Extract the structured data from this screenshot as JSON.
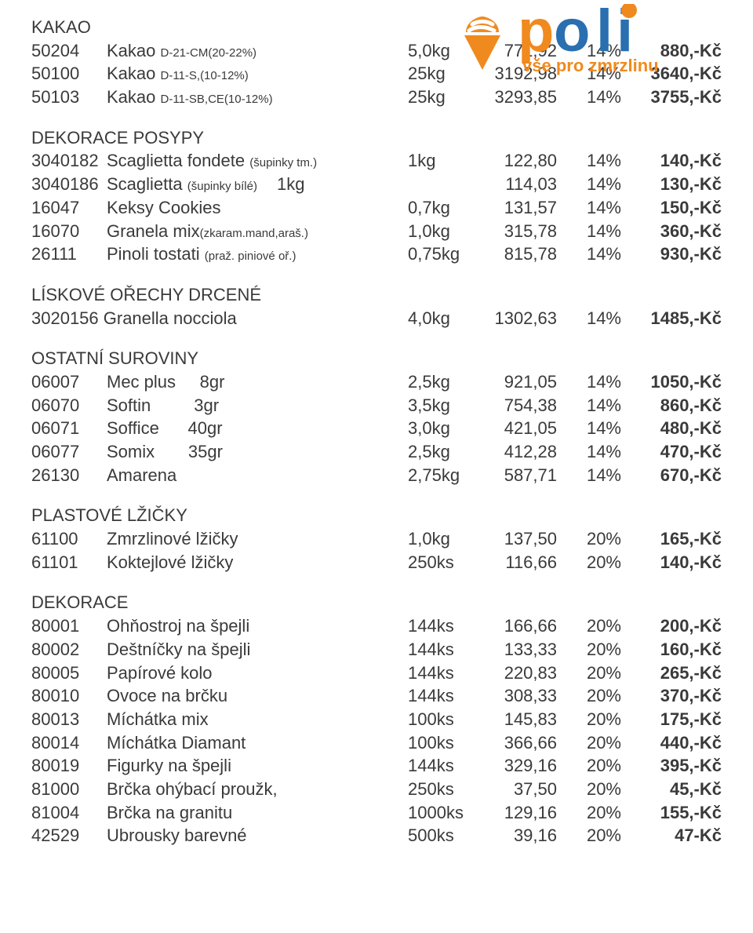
{
  "logo": {
    "cone_color": "#f08a1f",
    "scoop_color": "#f08a1f",
    "p_color": "#f08a1f",
    "oli_color": "#2a6fb0",
    "tagline": "vše pro zmrzlinu",
    "tagline_color": "#f08a1f"
  },
  "sections": [
    {
      "heading": "KAKAO",
      "rows": [
        {
          "code": "50204",
          "name": "Kakao ",
          "sub": "D-21-CM(20-22%)",
          "wt": "5,0kg",
          "price": "771,92",
          "tax": "14%",
          "total": "880,-Kč"
        },
        {
          "code": "50100",
          "name": "Kakao ",
          "sub": "D-11-S,(10-12%)",
          "wt": "25kg",
          "price": "3192,98",
          "tax": "14%",
          "total": "3640,-Kč"
        },
        {
          "code": "50103",
          "name": "Kakao ",
          "sub": "D-11-SB,CE(10-12%) ",
          "wt": "25kg",
          "price": "3293,85",
          "tax": "14%",
          "total": "3755,-Kč"
        }
      ]
    },
    {
      "heading": "DEKORACE POSYPY",
      "rows": [
        {
          "code": "3040182",
          "name": "Scaglietta fondete ",
          "sub": "(šupinky tm.)",
          "wt": "1kg",
          "price": "122,80",
          "tax": "14%",
          "total": "140,-Kč"
        },
        {
          "code": "3040186",
          "name": "Scaglietta ",
          "sub": "(šupinky bílé)      ",
          "post": "1kg",
          "wt": "",
          "price": "114,03",
          "tax": "14%",
          "total": "130,-Kč"
        },
        {
          "code": "16047",
          "name": "Keksy Cookies",
          "wt": "0,7kg",
          "price": "131,57",
          "tax": "14%",
          "total": "150,-Kč"
        },
        {
          "code": "16070",
          "name": "Granela mix",
          "sub": "(zkaram.mand,araš.)",
          "wt": "1,0kg",
          "price": "315,78",
          "tax": "14%",
          "total": "360,-Kč"
        },
        {
          "code": "26111",
          "name": "Pinoli tostati ",
          "sub": "(praž. piniové oř.)",
          "wt": "0,75kg",
          "price": "815,78",
          "tax": "14%",
          "total": "930,-Kč"
        }
      ]
    },
    {
      "heading": "LÍSKOVÉ OŘECHY DRCENÉ",
      "rows": [
        {
          "code": "3020156 Granella nocciola",
          "name": "",
          "wt": "4,0kg",
          "price": "1302,63",
          "tax": "14%",
          "total": "1485,-Kč",
          "merged": true
        }
      ]
    },
    {
      "heading": "OSTATNÍ SUROVINY",
      "rows": [
        {
          "code": "06007",
          "name": "Mec plus     8gr",
          "wt": "2,5kg",
          "price": "921,05",
          "tax": "14%",
          "total": "1050,-Kč"
        },
        {
          "code": "06070",
          "name": "Softin         3gr",
          "wt": "3,5kg",
          "price": "754,38",
          "tax": "14%",
          "total": "860,-Kč"
        },
        {
          "code": "06071",
          "name": "Soffice      40gr",
          "wt": "3,0kg",
          "price": "421,05",
          "tax": "14%",
          "total": "480,-Kč"
        },
        {
          "code": "06077",
          "name": "Somix       35gr",
          "wt": "2,5kg",
          "price": "412,28",
          "tax": "14%",
          "total": "470,-Kč"
        },
        {
          "code": "26130",
          "name": "Amarena",
          "wt": "2,75kg",
          "price": "587,71",
          "tax": "14%",
          "total": "670,-Kč"
        }
      ]
    },
    {
      "heading": "PLASTOVÉ LŽIČKY",
      "rows": [
        {
          "code": "61100",
          "name": "Zmrzlinové lžičky",
          "wt": "1,0kg",
          "price": "137,50",
          "tax": "20%",
          "total": "165,-Kč"
        },
        {
          "code": "61101",
          "name": "Koktejlové lžičky",
          "wt": "250ks",
          "price": "116,66",
          "tax": "20%",
          "total": "140,-Kč"
        }
      ]
    },
    {
      "heading": "DEKORACE",
      "rows": [
        {
          "code": "80001",
          "name": "Ohňostroj na špejli",
          "wt": "144ks",
          "price": "166,66",
          "tax": "20%",
          "total": "200,-Kč"
        },
        {
          "code": "80002",
          "name": "Deštníčky na špejli",
          "wt": "144ks",
          "price": "133,33",
          "tax": "20%",
          "total": "160,-Kč"
        },
        {
          "code": "80005",
          "name": "Papírové kolo",
          "wt": "144ks",
          "price": "220,83",
          "tax": "20%",
          "total": "265,-Kč"
        },
        {
          "code": "80010",
          "name": "Ovoce na brčku",
          "wt": "144ks",
          "price": "308,33",
          "tax": "20%",
          "total": "370,-Kč"
        },
        {
          "code": "80013",
          "name": "Míchátka mix",
          "wt": "100ks",
          "price": "145,83",
          "tax": "20%",
          "total": "175,-Kč"
        },
        {
          "code": "80014",
          "name": "Míchátka Diamant",
          "wt": "100ks",
          "price": "366,66",
          "tax": "20%",
          "total": "440,-Kč"
        },
        {
          "code": "80019",
          "name": "Figurky na špejli",
          "wt": "144ks",
          "price": "329,16",
          "tax": "20%",
          "total": "395,-Kč"
        },
        {
          "code": "81000",
          "name": "Brčka ohýbací proužk,",
          "wt": "250ks",
          "price": "37,50",
          "tax": "20%",
          "total": "45,-Kč"
        },
        {
          "code": "81004",
          "name": "Brčka na granitu",
          "wt": "1000ks",
          "price": "129,16",
          "tax": "20%",
          "total": "155,-Kč"
        },
        {
          "code": "42529",
          "name": "Ubrousky barevné",
          "wt": "500ks",
          "price": "39,16",
          "tax": "20%",
          "total": "47-Kč"
        }
      ]
    }
  ]
}
